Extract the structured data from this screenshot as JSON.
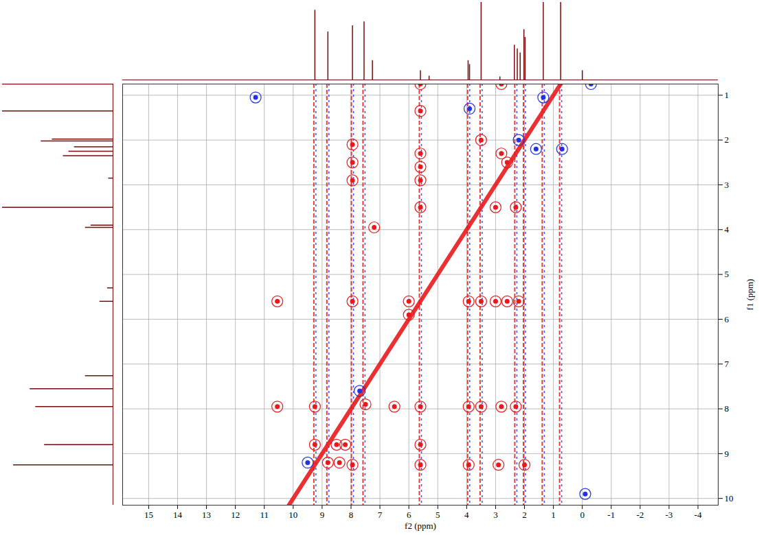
{
  "chart_data": {
    "type": "nmr_2d",
    "x_label": "f2 (ppm)",
    "y_label": "f1 (ppm)",
    "xlim": [
      15.9,
      -4.7
    ],
    "ylim": [
      0.75,
      10.15
    ],
    "xticks": [
      15,
      14,
      13,
      12,
      11,
      10,
      9,
      8,
      7,
      6,
      5,
      4,
      3,
      2,
      1,
      0,
      -1,
      -2,
      -3,
      -4
    ],
    "yticks": [
      1,
      2,
      3,
      4,
      5,
      6,
      7,
      8,
      9,
      10
    ],
    "grid": true,
    "color": "#7a0a0a",
    "colors": [
      "#e8191c",
      "#2233dd"
    ],
    "spectrum": {
      "ppm": [
        9.25,
        8.8,
        7.95,
        7.55,
        7.26,
        5.6,
        5.3,
        3.95,
        3.9,
        3.5,
        2.85,
        2.35,
        2.25,
        2.15,
        2.02,
        1.98,
        1.35,
        0.75,
        0.0
      ],
      "intensity": [
        0.9,
        0.62,
        0.7,
        0.75,
        0.25,
        0.12,
        0.05,
        0.25,
        0.2,
        1.0,
        0.04,
        0.45,
        0.4,
        0.35,
        0.65,
        0.55,
        1.0,
        1.0,
        0.12
      ]
    },
    "t1_noise_f2": [
      9.25,
      8.8,
      7.95,
      7.55,
      5.6,
      3.93,
      3.5,
      2.3,
      2.0,
      1.35,
      0.75
    ],
    "diagonal": {
      "f2": [
        10.6,
        0.7
      ],
      "f1": [
        10.6,
        0.7
      ]
    },
    "cross_peaks": {
      "f2": [
        5.6,
        5.6,
        5.6,
        5.6,
        5.6,
        5.6,
        5.6,
        5.6,
        7.95,
        7.95,
        7.95,
        7.95,
        7.95,
        7.5,
        8.5,
        8.2,
        8.4,
        8.8,
        9.25,
        9.25,
        2.2,
        2.6,
        3.0,
        3.5,
        3.93,
        6.0,
        2.3,
        2.8,
        3.5,
        3.93,
        5.6,
        6.5,
        2.8,
        2.6,
        3.0,
        2.3,
        2.8,
        3.5,
        3.93,
        2.9,
        2.0,
        10.55,
        10.55,
        7.2,
        6.0,
        9.5,
        7.7,
        3.9,
        1.6,
        0.7,
        11.3,
        -0.1,
        -0.3,
        2.2,
        1.35
      ],
      "f1": [
        2.3,
        2.6,
        2.9,
        3.5,
        1.35,
        0.75,
        8.8,
        9.25,
        2.1,
        2.5,
        2.9,
        5.6,
        9.25,
        7.9,
        8.8,
        8.8,
        9.2,
        9.2,
        8.8,
        7.95,
        5.6,
        5.6,
        5.6,
        5.6,
        5.6,
        5.6,
        7.95,
        7.95,
        7.95,
        7.95,
        7.95,
        7.95,
        2.3,
        2.5,
        3.5,
        3.5,
        0.75,
        2.0,
        9.25,
        9.25,
        9.25,
        5.6,
        7.95,
        3.95,
        5.9,
        9.2,
        7.6,
        1.3,
        2.2,
        2.2,
        1.05,
        9.9,
        0.75,
        2.0,
        1.05
      ],
      "sign": [
        1,
        1,
        1,
        1,
        1,
        1,
        1,
        1,
        1,
        1,
        1,
        1,
        1,
        1,
        1,
        1,
        1,
        1,
        1,
        1,
        1,
        1,
        1,
        1,
        1,
        1,
        1,
        1,
        1,
        1,
        1,
        1,
        1,
        1,
        1,
        1,
        1,
        1,
        1,
        1,
        1,
        1,
        1,
        1,
        1,
        -1,
        -1,
        -1,
        -1,
        -1,
        -1,
        -1,
        -1,
        -1,
        -1
      ]
    }
  }
}
